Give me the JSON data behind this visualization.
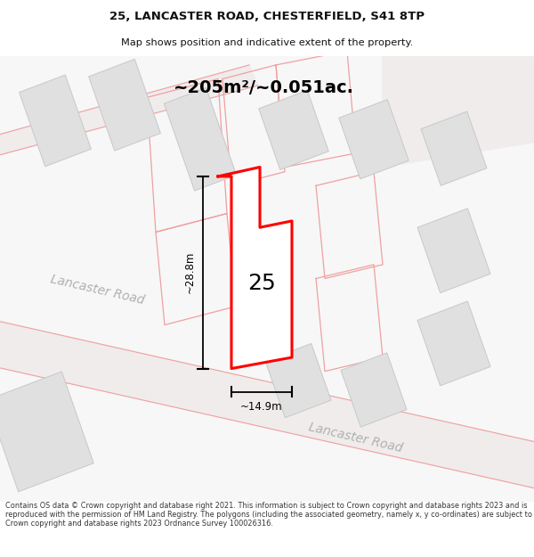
{
  "title_line1": "25, LANCASTER ROAD, CHESTERFIELD, S41 8TP",
  "title_line2": "Map shows position and indicative extent of the property.",
  "footer_text": "Contains OS data © Crown copyright and database right 2021. This information is subject to Crown copyright and database rights 2023 and is reproduced with the permission of HM Land Registry. The polygons (including the associated geometry, namely x, y co-ordinates) are subject to Crown copyright and database rights 2023 Ordnance Survey 100026316.",
  "area_label": "~205m²/~0.051ac.",
  "number_label": "25",
  "dim_height": "~28.8m",
  "dim_width": "~14.9m",
  "road_label1": "Lancaster Road",
  "road_label2": "Lancaster Road",
  "building_fill": "#e0e0e0",
  "building_edge": "#c8c8c8",
  "plot_stroke": "#ff0000",
  "neighbor_stroke": "#f0a0a0",
  "dim_line_color": "#000000",
  "text_color": "#000000",
  "road_text_color": "#b0b0b0",
  "map_bg": "#f7f7f7"
}
